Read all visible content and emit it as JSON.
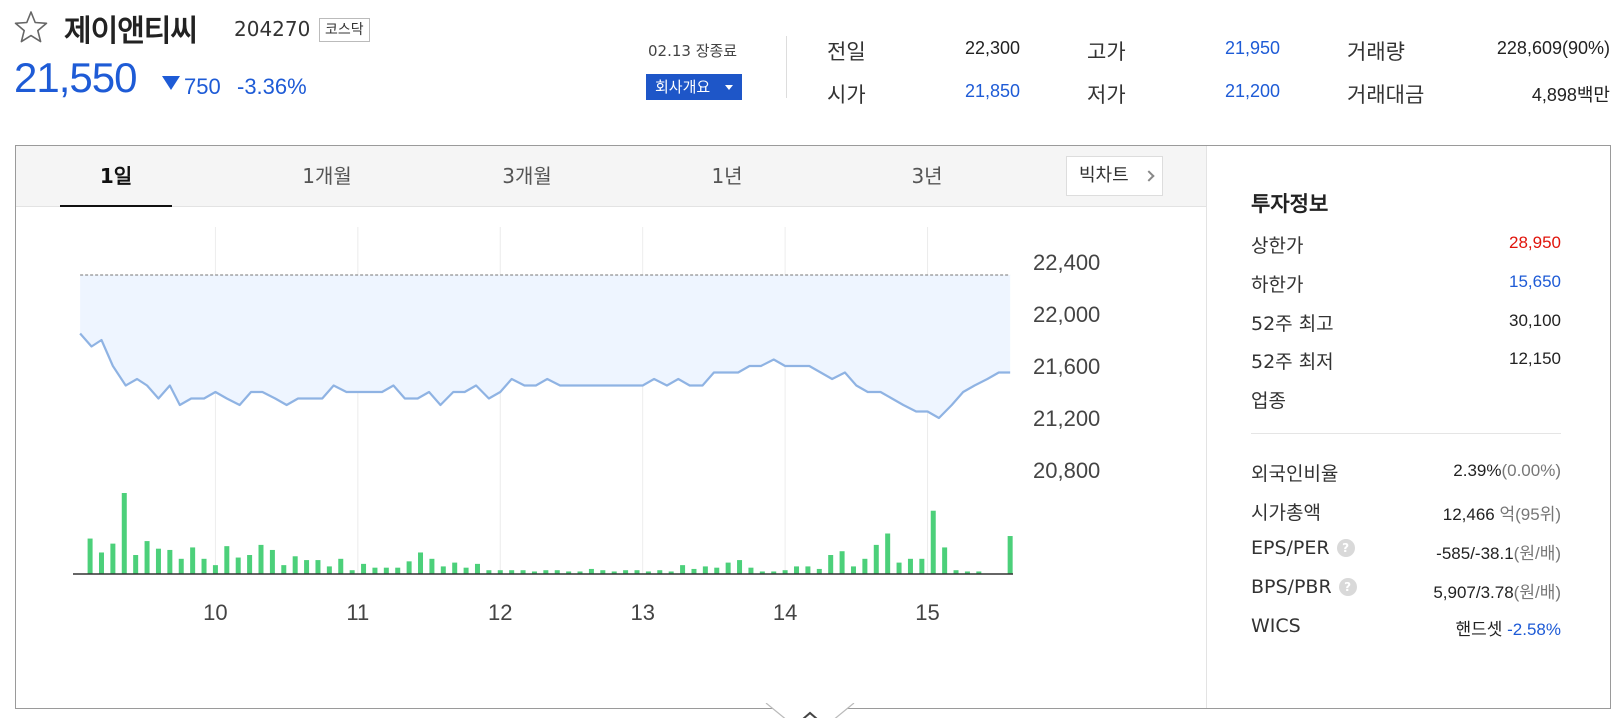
{
  "stock": {
    "name": "제이앤티씨",
    "code": "204270",
    "market": "코스닥",
    "price": "21,550",
    "change": "750",
    "change_pct": "-3.36%",
    "trade_date": "02.13 장종료",
    "company_button": "회사개요"
  },
  "quote": {
    "prev_close_label": "전일",
    "prev_close": "22,300",
    "open_label": "시가",
    "open": "21,850",
    "high_label": "고가",
    "high": "21,950",
    "low_label": "저가",
    "low": "21,200",
    "volume_label": "거래량",
    "volume": "228,609(90%)",
    "amount_label": "거래대금",
    "amount": "4,898백만"
  },
  "tabs": [
    {
      "label": "1일",
      "active": true
    },
    {
      "label": "1개월",
      "active": false
    },
    {
      "label": "3개월",
      "active": false
    },
    {
      "label": "1년",
      "active": false
    },
    {
      "label": "3년",
      "active": false
    }
  ],
  "big_chart_label": "빅차트",
  "colors": {
    "up": "#e0140b",
    "down": "#1e5bd6",
    "line": "#8fb3e3",
    "fill": "#eef5ff",
    "volume": "#4cd07a"
  },
  "chart_data": {
    "type": "line",
    "title": "",
    "xlabel": "",
    "ylabel": "",
    "y_ticks": [
      "22,400",
      "22,000",
      "21,600",
      "21,200",
      "20,800"
    ],
    "ylim": [
      20800,
      22400
    ],
    "x_ticks": [
      "10",
      "11",
      "12",
      "13",
      "14",
      "15"
    ],
    "x_range": [
      9.0,
      15.6
    ],
    "reference_line": 22300,
    "series": [
      {
        "x": [
          9.05,
          9.13,
          9.2,
          9.28,
          9.37,
          9.45,
          9.52,
          9.6,
          9.68,
          9.75,
          9.83,
          9.92,
          10.0,
          10.08,
          10.17,
          10.25,
          10.33,
          10.42,
          10.5,
          10.58,
          10.67,
          10.75,
          10.83,
          10.92,
          11.0,
          11.08,
          11.17,
          11.25,
          11.33,
          11.42,
          11.5,
          11.58,
          11.67,
          11.75,
          11.83,
          11.92,
          12.0,
          12.08,
          12.17,
          12.25,
          12.33,
          12.42,
          12.5,
          12.58,
          12.67,
          12.75,
          12.83,
          12.92,
          13.0,
          13.08,
          13.17,
          13.25,
          13.33,
          13.42,
          13.5,
          13.58,
          13.67,
          13.75,
          13.83,
          13.92,
          14.0,
          14.08,
          14.17,
          14.25,
          14.33,
          14.42,
          14.5,
          14.58,
          14.67,
          14.75,
          14.83,
          14.92,
          15.0,
          15.08,
          15.17,
          15.25,
          15.33,
          15.42,
          15.5,
          15.58
        ],
        "y": [
          21850,
          21750,
          21800,
          21600,
          21450,
          21500,
          21450,
          21350,
          21450,
          21300,
          21350,
          21350,
          21400,
          21350,
          21300,
          21400,
          21400,
          21350,
          21300,
          21350,
          21350,
          21350,
          21450,
          21400,
          21400,
          21400,
          21400,
          21450,
          21350,
          21350,
          21400,
          21300,
          21400,
          21400,
          21450,
          21350,
          21400,
          21500,
          21450,
          21450,
          21500,
          21450,
          21450,
          21450,
          21450,
          21450,
          21450,
          21450,
          21450,
          21500,
          21450,
          21500,
          21450,
          21450,
          21550,
          21550,
          21550,
          21600,
          21600,
          21650,
          21600,
          21600,
          21600,
          21550,
          21500,
          21550,
          21450,
          21400,
          21400,
          21350,
          21300,
          21250,
          21250,
          21200,
          21300,
          21400,
          21450,
          21500,
          21550,
          21550
        ]
      },
      {
        "x": [
          9.12,
          9.2,
          9.28,
          9.36,
          9.44,
          9.52,
          9.6,
          9.68,
          9.76,
          9.84,
          9.92,
          10.0,
          10.08,
          10.16,
          10.24,
          10.32,
          10.4,
          10.48,
          10.56,
          10.64,
          10.72,
          10.8,
          10.88,
          10.96,
          11.04,
          11.12,
          11.2,
          11.28,
          11.36,
          11.44,
          11.52,
          11.6,
          11.68,
          11.76,
          11.84,
          11.92,
          12.0,
          12.08,
          12.16,
          12.24,
          12.32,
          12.4,
          12.48,
          12.56,
          12.64,
          12.72,
          12.8,
          12.88,
          12.96,
          13.04,
          13.12,
          13.2,
          13.28,
          13.36,
          13.44,
          13.52,
          13.6,
          13.68,
          13.76,
          13.84,
          13.92,
          14.0,
          14.08,
          14.16,
          14.24,
          14.32,
          14.4,
          14.48,
          14.56,
          14.64,
          14.72,
          14.8,
          14.88,
          14.96,
          15.04,
          15.12,
          15.2,
          15.28,
          15.36,
          15.58
        ],
        "y": [
          14000,
          8500,
          12000,
          32000,
          7500,
          13000,
          10000,
          9500,
          6000,
          10500,
          6000,
          3500,
          11000,
          6500,
          7500,
          11500,
          9500,
          3500,
          7000,
          5500,
          5500,
          3000,
          6000,
          1500,
          4000,
          2500,
          2500,
          2500,
          5000,
          8500,
          6000,
          3000,
          4500,
          2500,
          4000,
          1500,
          1500,
          1500,
          1500,
          1000,
          1500,
          1500,
          1000,
          1000,
          2000,
          1500,
          1000,
          1500,
          1500,
          1000,
          1500,
          1000,
          3500,
          2000,
          3000,
          2500,
          4500,
          5500,
          2500,
          1000,
          1000,
          1500,
          3000,
          3000,
          2000,
          7500,
          9000,
          3000,
          6000,
          11500,
          16000,
          4500,
          6000,
          6000,
          25000,
          10500,
          1500,
          1000,
          1000,
          15000
        ]
      }
    ]
  },
  "info": {
    "title": "투자정보",
    "upper_limit_label": "상한가",
    "upper_limit": "28,950",
    "lower_limit_label": "하한가",
    "lower_limit": "15,650",
    "w52_high_label": "52주 최고",
    "w52_high": "30,100",
    "w52_low_label": "52주 최저",
    "w52_low": "12,150",
    "sector_label": "업종",
    "foreign_ratio_label": "외국인비율",
    "foreign_ratio": "2.39%",
    "foreign_ratio_change": "(0.00%)",
    "market_cap_label": "시가총액",
    "market_cap": "12,466",
    "market_cap_unit": "억(95위)",
    "eps_per_label": "EPS/PER",
    "eps_per": "-585/-38.1",
    "eps_per_unit": "(원/배)",
    "bps_pbr_label": "BPS/PBR",
    "bps_pbr": "5,907/3.78",
    "bps_pbr_unit": "(원/배)",
    "help_glyph": "?",
    "wics_label": "WICS",
    "wics_sector": "핸드셋",
    "wics_change": "-2.58%"
  }
}
